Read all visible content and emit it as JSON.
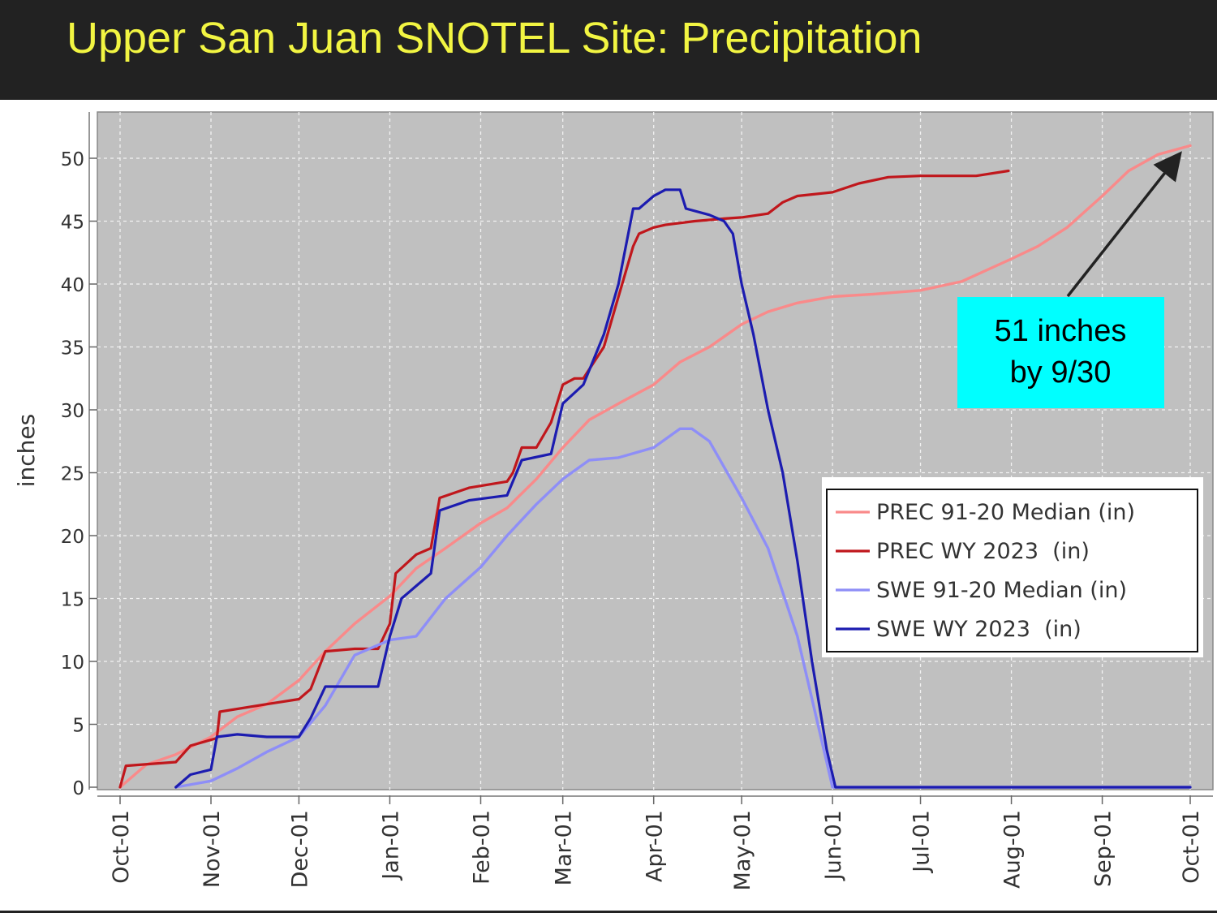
{
  "header": {
    "title": "Upper San Juan SNOTEL Site: Precipitation"
  },
  "chart_data": {
    "type": "line",
    "ylabel": "inches",
    "xlabel": "",
    "ylim": [
      0,
      53
    ],
    "yticks": [
      0,
      5,
      10,
      15,
      20,
      25,
      30,
      35,
      40,
      45,
      50
    ],
    "x_tick_labels": [
      "Oct-01",
      "Nov-01",
      "Dec-01",
      "Jan-01",
      "Feb-01",
      "Mar-01",
      "Apr-01",
      "May-01",
      "Jun-01",
      "Jul-01",
      "Aug-01",
      "Sep-01",
      "Oct-01"
    ],
    "x_tick_dates": [
      "2022-10-01",
      "2022-11-01",
      "2022-12-01",
      "2023-01-01",
      "2023-02-01",
      "2023-03-01",
      "2023-04-01",
      "2023-05-01",
      "2023-06-01",
      "2023-07-01",
      "2023-08-01",
      "2023-09-01",
      "2023-10-01"
    ],
    "xlim": [
      "2022-09-23",
      "2023-10-01"
    ],
    "grid": true,
    "legend_position": "right",
    "series": [
      {
        "name": "PREC 91-20 Median (in)",
        "color": "#f98a8a",
        "x": [
          "2022-10-01",
          "2022-10-10",
          "2022-10-20",
          "2022-11-01",
          "2022-11-10",
          "2022-11-20",
          "2022-12-01",
          "2022-12-10",
          "2022-12-20",
          "2023-01-01",
          "2023-01-10",
          "2023-01-20",
          "2023-02-01",
          "2023-02-10",
          "2023-02-20",
          "2023-03-01",
          "2023-03-10",
          "2023-03-20",
          "2023-04-01",
          "2023-04-10",
          "2023-04-20",
          "2023-05-01",
          "2023-05-10",
          "2023-05-20",
          "2023-06-01",
          "2023-06-15",
          "2023-07-01",
          "2023-07-15",
          "2023-08-01",
          "2023-08-10",
          "2023-08-20",
          "2023-09-01",
          "2023-09-10",
          "2023-09-20",
          "2023-10-01"
        ],
        "y": [
          0,
          1.8,
          2.6,
          4.0,
          5.6,
          6.6,
          8.5,
          10.8,
          13.0,
          15.2,
          17.4,
          19.0,
          21.0,
          22.2,
          24.5,
          27.0,
          29.2,
          30.5,
          32.0,
          33.8,
          35.0,
          36.8,
          37.8,
          38.5,
          39.0,
          39.2,
          39.5,
          40.2,
          42.0,
          43.0,
          44.5,
          47.0,
          49.0,
          50.3,
          51.0
        ]
      },
      {
        "name": "PREC WY 2023  (in)",
        "color": "#c0171c",
        "x": [
          "2022-10-01",
          "2022-10-03",
          "2022-10-20",
          "2022-10-25",
          "2022-11-03",
          "2022-11-04",
          "2022-11-20",
          "2022-12-01",
          "2022-12-05",
          "2022-12-10",
          "2022-12-20",
          "2022-12-28",
          "2023-01-01",
          "2023-01-03",
          "2023-01-10",
          "2023-01-15",
          "2023-01-18",
          "2023-01-28",
          "2023-02-10",
          "2023-02-12",
          "2023-02-15",
          "2023-02-20",
          "2023-02-25",
          "2023-03-01",
          "2023-03-05",
          "2023-03-08",
          "2023-03-15",
          "2023-03-20",
          "2023-03-25",
          "2023-03-27",
          "2023-04-01",
          "2023-04-05",
          "2023-04-15",
          "2023-04-25",
          "2023-05-01",
          "2023-05-10",
          "2023-05-15",
          "2023-05-20",
          "2023-06-01",
          "2023-06-10",
          "2023-06-20",
          "2023-07-01",
          "2023-07-20",
          "2023-07-31"
        ],
        "y": [
          0,
          1.7,
          2.0,
          3.3,
          3.9,
          6.0,
          6.6,
          7.0,
          7.8,
          10.8,
          11.0,
          11.0,
          13.0,
          17.0,
          18.5,
          19.0,
          23.0,
          23.8,
          24.3,
          25.0,
          27.0,
          27.0,
          29.0,
          32.0,
          32.5,
          32.5,
          35.0,
          39.0,
          43.0,
          44.0,
          44.5,
          44.7,
          45.0,
          45.2,
          45.3,
          45.6,
          46.5,
          47.0,
          47.3,
          48.0,
          48.5,
          48.6,
          48.6,
          49.0
        ]
      },
      {
        "name": "SWE 91-20 Median (in)",
        "color": "#8e8ef7",
        "x": [
          "2022-10-20",
          "2022-11-01",
          "2022-11-10",
          "2022-11-20",
          "2022-12-01",
          "2022-12-10",
          "2022-12-20",
          "2023-01-01",
          "2023-01-10",
          "2023-01-20",
          "2023-02-01",
          "2023-02-10",
          "2023-02-20",
          "2023-03-01",
          "2023-03-10",
          "2023-03-20",
          "2023-04-01",
          "2023-04-10",
          "2023-04-14",
          "2023-04-20",
          "2023-05-01",
          "2023-05-10",
          "2023-05-20",
          "2023-05-28",
          "2023-06-01",
          "2023-10-01"
        ],
        "y": [
          0,
          0.5,
          1.5,
          2.8,
          4.0,
          6.5,
          10.5,
          11.7,
          12.0,
          15.0,
          17.5,
          20.0,
          22.5,
          24.5,
          26.0,
          26.2,
          27.0,
          28.5,
          28.5,
          27.5,
          23.0,
          19.0,
          12.0,
          4.0,
          0,
          0
        ]
      },
      {
        "name": "SWE WY 2023  (in)",
        "color": "#1c1cb0",
        "x": [
          "2022-10-20",
          "2022-10-25",
          "2022-11-01",
          "2022-11-03",
          "2022-11-10",
          "2022-11-20",
          "2022-12-01",
          "2022-12-05",
          "2022-12-10",
          "2022-12-20",
          "2022-12-28",
          "2023-01-01",
          "2023-01-05",
          "2023-01-10",
          "2023-01-15",
          "2023-01-18",
          "2023-01-28",
          "2023-02-10",
          "2023-02-15",
          "2023-02-25",
          "2023-03-01",
          "2023-03-08",
          "2023-03-15",
          "2023-03-20",
          "2023-03-25",
          "2023-03-27",
          "2023-04-01",
          "2023-04-05",
          "2023-04-10",
          "2023-04-12",
          "2023-04-20",
          "2023-04-25",
          "2023-04-28",
          "2023-05-01",
          "2023-05-05",
          "2023-05-10",
          "2023-05-15",
          "2023-05-20",
          "2023-05-25",
          "2023-05-30",
          "2023-06-02",
          "2023-10-01"
        ],
        "y": [
          0,
          1.0,
          1.4,
          4.0,
          4.2,
          4.0,
          4.0,
          5.5,
          8.0,
          8.0,
          8.0,
          12.0,
          15.0,
          16.0,
          17.0,
          22.0,
          22.8,
          23.2,
          26.0,
          26.5,
          30.5,
          32.0,
          36.0,
          40.0,
          46.0,
          46.0,
          47.0,
          47.5,
          47.5,
          46.0,
          45.5,
          45.0,
          44.0,
          40.0,
          36.0,
          30.0,
          25.0,
          18.0,
          10.0,
          3.0,
          0,
          0
        ]
      }
    ],
    "annotations": [
      {
        "text_line1": "51 inches",
        "text_line2": "by 9/30",
        "target_date": "2023-09-30",
        "target_value": 51
      }
    ]
  },
  "colors": {
    "header_bg": "#222222",
    "title_text": "#f2f542",
    "plot_bg": "#c0c0c0",
    "callout_bg": "#00ffff"
  }
}
